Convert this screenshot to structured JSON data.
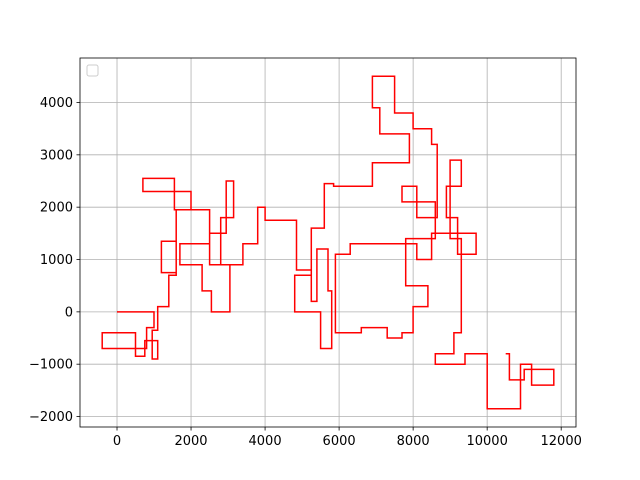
{
  "chart_data": {
    "type": "line",
    "title": "",
    "xlabel": "",
    "ylabel": "",
    "xlim": [
      -1000,
      12400
    ],
    "ylim": [
      -2200,
      4850
    ],
    "xticks": [
      0,
      2000,
      4000,
      6000,
      8000,
      10000,
      12000
    ],
    "yticks": [
      -2000,
      -1000,
      0,
      1000,
      2000,
      3000,
      4000
    ],
    "xtick_labels": [
      "0",
      "2000",
      "4000",
      "6000",
      "8000",
      "10000",
      "12000"
    ],
    "ytick_labels": [
      "−2000",
      "−1000",
      "0",
      "1000",
      "2000",
      "3000",
      "4000"
    ],
    "grid": true,
    "legend": {
      "placement": "top-left",
      "entries": []
    },
    "series": [
      {
        "color": "#ff0000",
        "step_path": [
          [
            0,
            0
          ],
          [
            1000,
            0
          ],
          [
            1000,
            -300
          ],
          [
            800,
            -300
          ],
          [
            800,
            -700
          ],
          [
            -400,
            -700
          ],
          [
            -400,
            -400
          ],
          [
            500,
            -400
          ],
          [
            500,
            -850
          ],
          [
            750,
            -850
          ],
          [
            750,
            -550
          ],
          [
            1100,
            -550
          ],
          [
            1100,
            -900
          ],
          [
            950,
            -900
          ],
          [
            950,
            -350
          ],
          [
            1100,
            -350
          ],
          [
            1100,
            100
          ],
          [
            1400,
            100
          ],
          [
            1400,
            700
          ],
          [
            1600,
            700
          ],
          [
            1600,
            1350
          ],
          [
            1200,
            1350
          ],
          [
            1200,
            750
          ],
          [
            1600,
            750
          ],
          [
            1600,
            1950
          ],
          [
            2000,
            1950
          ],
          [
            2000,
            2300
          ],
          [
            700,
            2300
          ],
          [
            700,
            2550
          ],
          [
            1550,
            2550
          ],
          [
            1550,
            1950
          ],
          [
            2500,
            1950
          ],
          [
            2500,
            1300
          ],
          [
            1700,
            1300
          ],
          [
            1700,
            900
          ],
          [
            2300,
            900
          ],
          [
            2300,
            400
          ],
          [
            2550,
            400
          ],
          [
            2550,
            0
          ],
          [
            3050,
            0
          ],
          [
            3050,
            900
          ],
          [
            2500,
            900
          ],
          [
            2500,
            1500
          ],
          [
            2950,
            1500
          ],
          [
            2950,
            2500
          ],
          [
            3150,
            2500
          ],
          [
            3150,
            1800
          ],
          [
            2800,
            1800
          ],
          [
            2800,
            900
          ],
          [
            3400,
            900
          ],
          [
            3400,
            1300
          ],
          [
            3800,
            1300
          ],
          [
            3800,
            2000
          ],
          [
            4000,
            2000
          ],
          [
            4000,
            1750
          ],
          [
            4850,
            1750
          ],
          [
            4850,
            800
          ],
          [
            5250,
            800
          ],
          [
            5250,
            700
          ],
          [
            4800,
            700
          ],
          [
            4800,
            0
          ],
          [
            5500,
            0
          ],
          [
            5500,
            -700
          ],
          [
            5800,
            -700
          ],
          [
            5800,
            400
          ],
          [
            5700,
            400
          ],
          [
            5700,
            1200
          ],
          [
            5400,
            1200
          ],
          [
            5400,
            200
          ],
          [
            5250,
            200
          ],
          [
            5250,
            1600
          ],
          [
            5600,
            1600
          ],
          [
            5600,
            2450
          ],
          [
            5850,
            2450
          ],
          [
            5850,
            2400
          ],
          [
            6900,
            2400
          ],
          [
            6900,
            2850
          ],
          [
            7900,
            2850
          ],
          [
            7900,
            3400
          ],
          [
            7100,
            3400
          ],
          [
            7100,
            3900
          ],
          [
            6900,
            3900
          ],
          [
            6900,
            4500
          ],
          [
            7500,
            4500
          ],
          [
            7500,
            3800
          ],
          [
            8000,
            3800
          ],
          [
            8000,
            3500
          ],
          [
            8500,
            3500
          ],
          [
            8500,
            3200
          ],
          [
            8650,
            3200
          ],
          [
            8650,
            1800
          ],
          [
            8100,
            1800
          ],
          [
            8100,
            2400
          ],
          [
            7700,
            2400
          ],
          [
            7700,
            2100
          ],
          [
            8600,
            2100
          ],
          [
            8600,
            1400
          ],
          [
            7800,
            1400
          ],
          [
            7800,
            500
          ],
          [
            8400,
            500
          ],
          [
            8400,
            100
          ],
          [
            8000,
            100
          ],
          [
            8000,
            -400
          ],
          [
            7700,
            -400
          ],
          [
            7700,
            -500
          ],
          [
            7300,
            -500
          ],
          [
            7300,
            -300
          ],
          [
            6600,
            -300
          ],
          [
            6600,
            -400
          ],
          [
            5900,
            -400
          ],
          [
            5900,
            -200
          ],
          [
            5900,
            1100
          ],
          [
            6300,
            1100
          ],
          [
            6300,
            1300
          ],
          [
            8100,
            1300
          ],
          [
            8100,
            1000
          ],
          [
            8500,
            1000
          ],
          [
            8500,
            1500
          ],
          [
            9700,
            1500
          ],
          [
            9700,
            1100
          ],
          [
            9200,
            1100
          ],
          [
            9200,
            1800
          ],
          [
            8900,
            1800
          ],
          [
            8900,
            2400
          ],
          [
            9300,
            2400
          ],
          [
            9300,
            2900
          ],
          [
            9000,
            2900
          ],
          [
            9000,
            1400
          ],
          [
            9300,
            1400
          ],
          [
            9300,
            -400
          ],
          [
            9100,
            -400
          ],
          [
            9100,
            -800
          ],
          [
            8600,
            -800
          ],
          [
            8600,
            -1000
          ],
          [
            9400,
            -1000
          ],
          [
            9400,
            -800
          ],
          [
            10000,
            -800
          ],
          [
            10000,
            -1850
          ],
          [
            10900,
            -1850
          ],
          [
            10900,
            -1000
          ],
          [
            11200,
            -1000
          ],
          [
            11200,
            -1400
          ],
          [
            11800,
            -1400
          ],
          [
            11800,
            -1100
          ],
          [
            11000,
            -1100
          ],
          [
            11000,
            -1300
          ],
          [
            10600,
            -1300
          ],
          [
            10600,
            -800
          ],
          [
            10500,
            -800
          ]
        ]
      }
    ]
  }
}
